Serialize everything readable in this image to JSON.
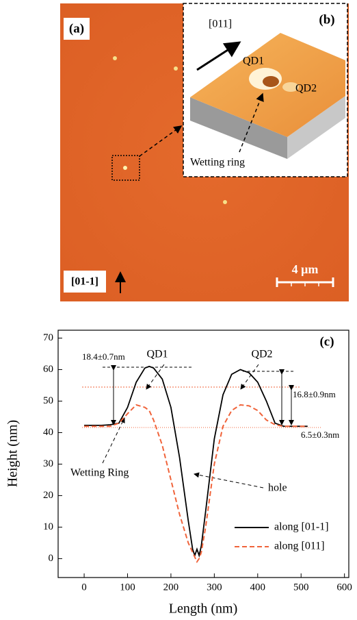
{
  "image_panel": {
    "panel_a": "(a)",
    "panel_b": "(b)",
    "direction_b": "[011]",
    "qd1": "QD1",
    "qd2": "QD2",
    "wetting": "Wetting ring",
    "scale": "4 μm",
    "direction_a": "[01-1]"
  },
  "chart_data": {
    "type": "line",
    "panel": "(c)",
    "x_label": "Length (nm)",
    "y_label": "Height (nm)",
    "x": [
      0,
      20,
      40,
      60,
      80,
      100,
      120,
      140,
      150,
      160,
      180,
      200,
      220,
      240,
      250,
      255,
      260,
      265,
      270,
      280,
      300,
      320,
      340,
      360,
      380,
      400,
      420,
      440,
      460,
      480,
      500,
      515
    ],
    "series": [
      {
        "name": "along [01-1]",
        "color": "#000000",
        "dash": false,
        "values": [
          42.3,
          42.3,
          42.3,
          42.5,
          43,
          48,
          56,
          60.5,
          61,
          60.5,
          57,
          48,
          32,
          12,
          3,
          1,
          3,
          1,
          4,
          15,
          38,
          52,
          58.5,
          60,
          59,
          56,
          50,
          43,
          42,
          42,
          42,
          42
        ]
      },
      {
        "name": "along [011]",
        "color": "#f0633a",
        "dash": true,
        "values": [
          42,
          42,
          42,
          42,
          43,
          46,
          48.8,
          48,
          47,
          44,
          36,
          25,
          14,
          5,
          2,
          0.5,
          -1,
          0,
          2,
          10,
          30,
          42,
          47,
          48.8,
          48.5,
          47,
          44,
          42.5,
          42,
          42,
          42,
          42
        ]
      }
    ],
    "xlim": [
      -60,
      610
    ],
    "ylim": [
      -6,
      72.5
    ],
    "xticks": [
      0,
      100,
      200,
      300,
      400,
      500,
      600
    ],
    "yticks": [
      0,
      10,
      20,
      30,
      40,
      50,
      60,
      70
    ],
    "annotations": {
      "qd1": "QD1",
      "qd2": "QD2",
      "h1": "18.4±0.7nm",
      "h2": "16.8±0.9nm",
      "h3": "6.5±0.3nm",
      "wetting": "Wetting Ring",
      "hole": "hole"
    },
    "legend": "lower right"
  }
}
